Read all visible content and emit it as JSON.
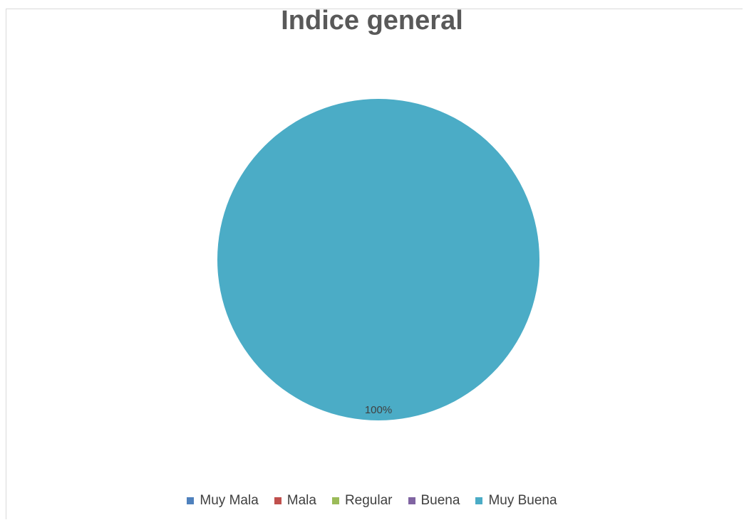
{
  "chart_data": {
    "type": "pie",
    "title": "Indice general",
    "categories": [
      "Muy Mala",
      "Mala",
      "Regular",
      "Buena",
      "Muy Buena"
    ],
    "values": [
      0,
      0,
      0,
      0,
      100
    ],
    "data_labels": [
      "",
      "",
      "",
      "",
      "100%"
    ],
    "colors": [
      "#4f81bd",
      "#c0504d",
      "#9bbb59",
      "#8064a2",
      "#4bacc6"
    ],
    "legend_position": "bottom"
  }
}
